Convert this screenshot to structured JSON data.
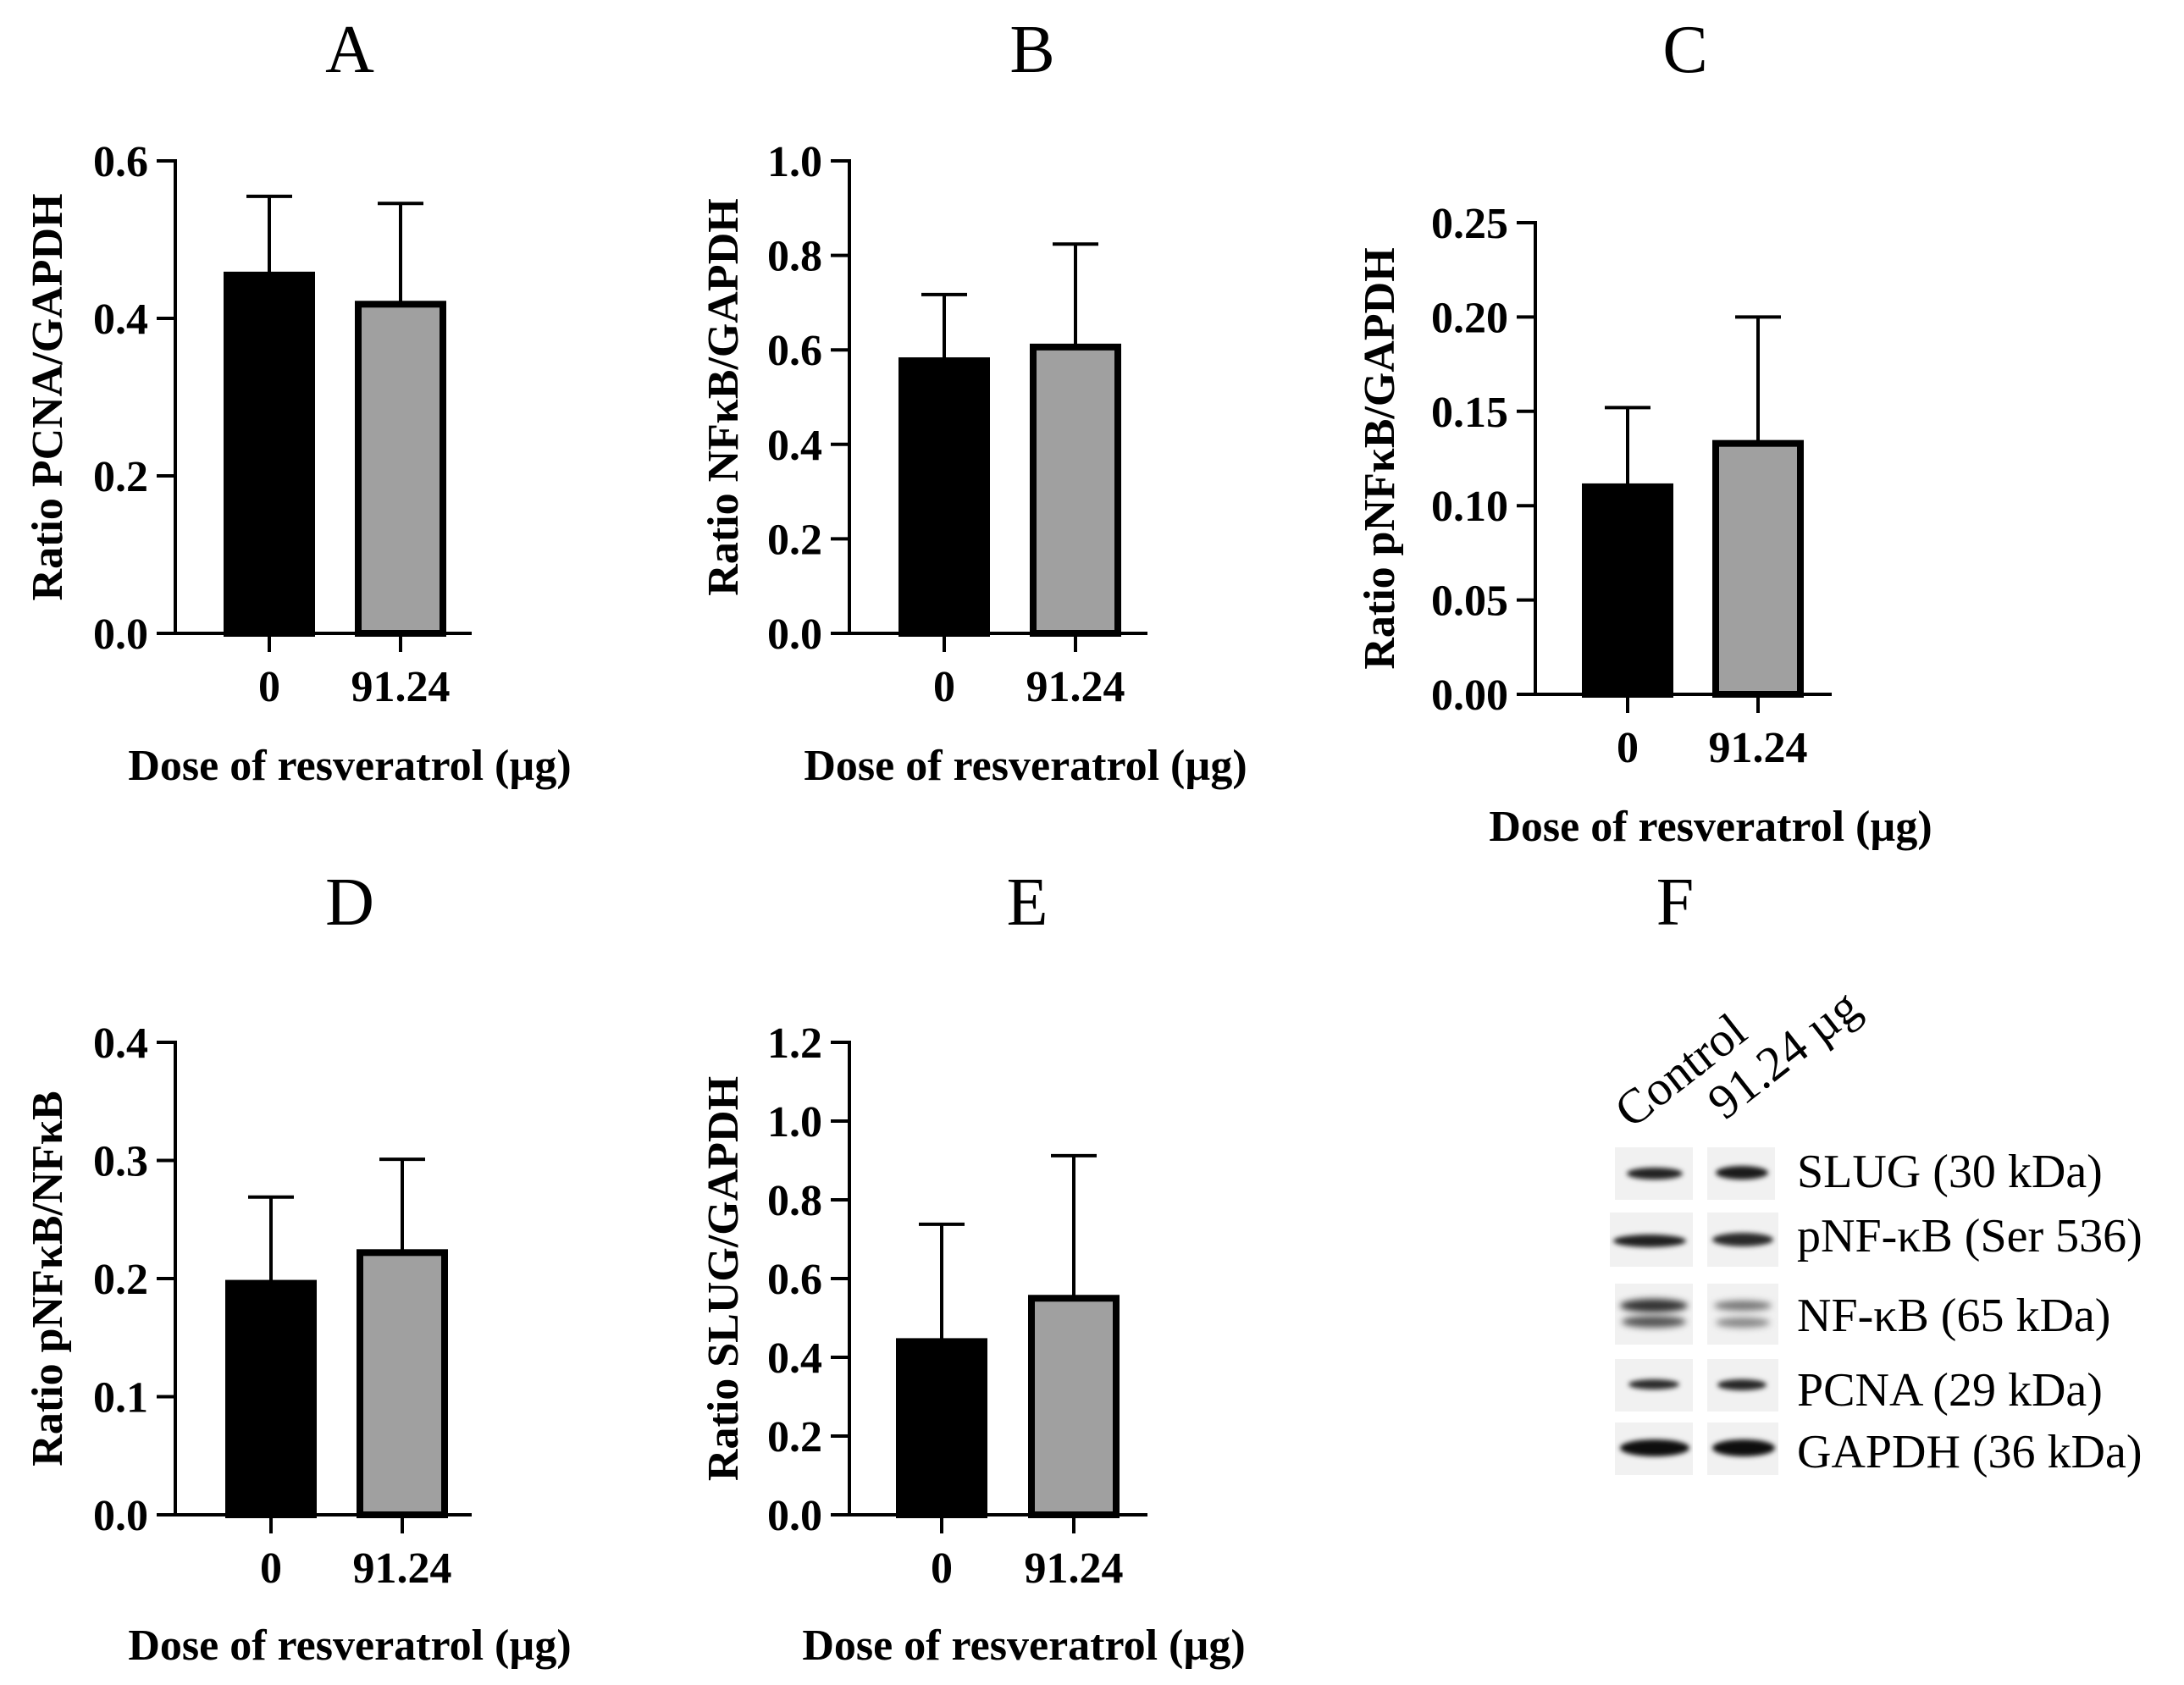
{
  "chart_data": [
    {
      "type": "bar",
      "panel_letter": "A",
      "categories": [
        "0",
        "91.24"
      ],
      "values": [
        0.455,
        0.418
      ],
      "error": [
        0.1,
        0.128
      ],
      "xlabel": "Dose of resveratrol (µg)",
      "ylabel": "Ratio PCNA/GAPDH",
      "ylim": [
        0,
        0.6
      ],
      "yticks": [
        "0.0",
        "0.2",
        "0.4",
        "0.6"
      ],
      "bar_colors": [
        "#000000",
        "#a0a0a0"
      ]
    },
    {
      "type": "bar",
      "panel_letter": "B",
      "categories": [
        "0",
        "91.24"
      ],
      "values": [
        0.577,
        0.606
      ],
      "error": [
        0.14,
        0.218
      ],
      "xlabel": "Dose of resveratrol (µg)",
      "ylabel": "Ratio NFκB/GAPDH",
      "ylim": [
        0,
        1.0
      ],
      "yticks": [
        "0.0",
        "0.2",
        "0.4",
        "0.6",
        "0.8",
        "1.0"
      ],
      "bar_colors": [
        "#000000",
        "#a0a0a0"
      ]
    },
    {
      "type": "bar",
      "panel_letter": "C",
      "categories": [
        "0",
        "91.24"
      ],
      "values": [
        0.11,
        0.133
      ],
      "error": [
        0.042,
        0.067
      ],
      "xlabel": "Dose of resveratrol (µg)",
      "ylabel": "Ratio pNFκB/GAPDH",
      "ylim": [
        0,
        0.25
      ],
      "yticks": [
        "0.00",
        "0.05",
        "0.10",
        "0.15",
        "0.20",
        "0.25"
      ],
      "bar_colors": [
        "#000000",
        "#a0a0a0"
      ]
    },
    {
      "type": "bar",
      "panel_letter": "D",
      "categories": [
        "0",
        "91.24"
      ],
      "values": [
        0.196,
        0.222
      ],
      "error": [
        0.073,
        0.079
      ],
      "xlabel": "Dose of resveratrol (µg)",
      "ylabel": "Ratio pNFκB/NFκB",
      "ylim": [
        0,
        0.4
      ],
      "yticks": [
        "0.0",
        "0.1",
        "0.2",
        "0.3",
        "0.4"
      ],
      "bar_colors": [
        "#000000",
        "#a0a0a0"
      ]
    },
    {
      "type": "bar",
      "panel_letter": "E",
      "categories": [
        "0",
        "91.24"
      ],
      "values": [
        0.44,
        0.55
      ],
      "error": [
        0.298,
        0.362
      ],
      "xlabel": "Dose of resveratrol (µg)",
      "ylabel": "Ratio SLUG/GAPDH",
      "ylim": [
        0,
        1.2
      ],
      "yticks": [
        "0.0",
        "0.2",
        "0.4",
        "0.6",
        "0.8",
        "1.0",
        "1.2"
      ],
      "bar_colors": [
        "#000000",
        "#a0a0a0"
      ]
    }
  ],
  "blot": {
    "panel_letter": "F",
    "lanes": [
      "Control",
      "91.24 µg"
    ],
    "bands": [
      "SLUG (30 kDa)",
      "pNF-κB (Ser 536)",
      "NF-κB (65 kDa)",
      "PCNA (29 kDa)",
      "GAPDH (36 kDa)"
    ]
  }
}
